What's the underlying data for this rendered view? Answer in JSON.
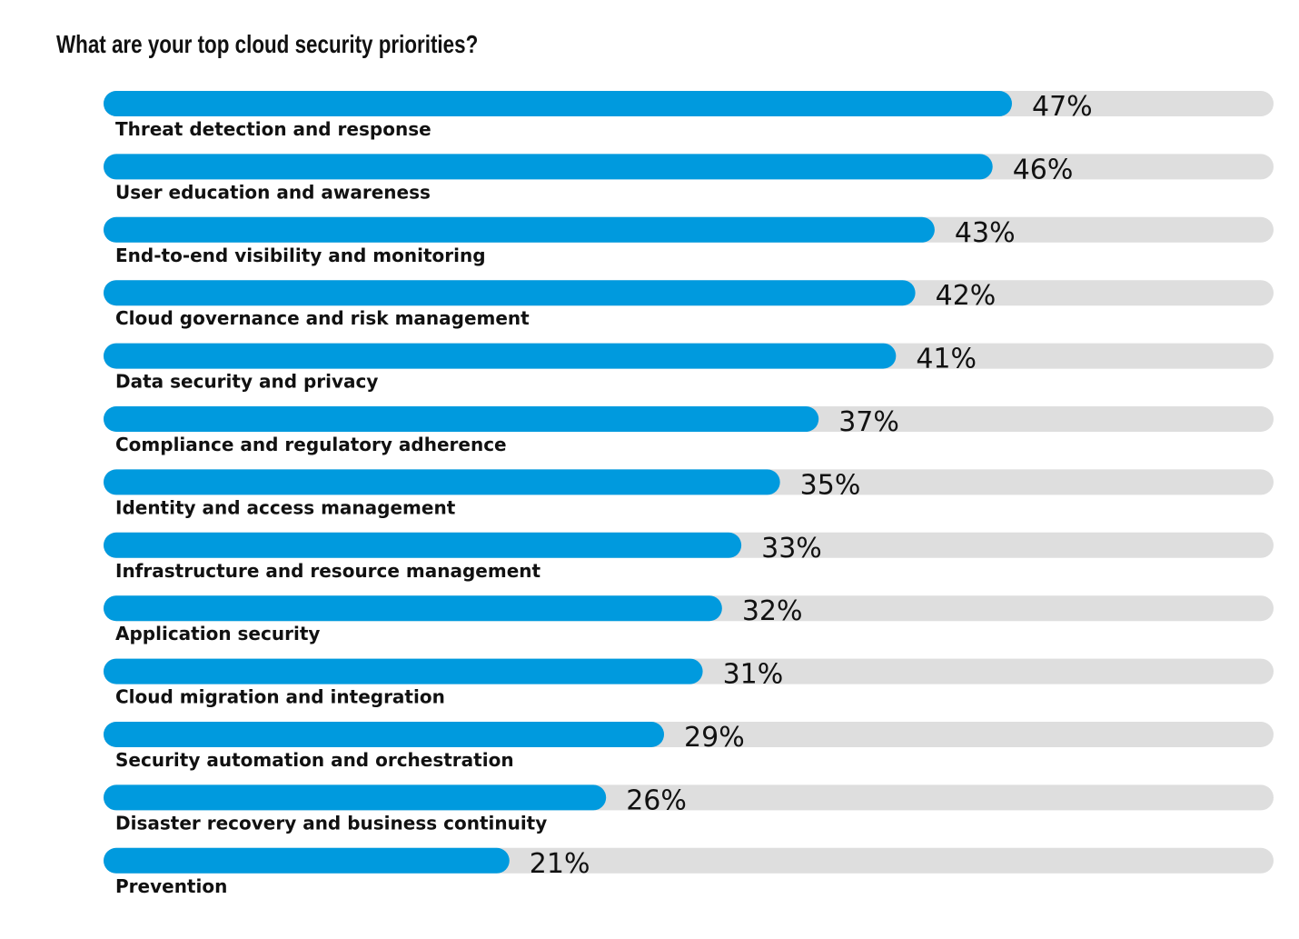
{
  "chart_data": {
    "type": "bar",
    "orientation": "horizontal",
    "title": "What are your top cloud security priorities?",
    "categories": [
      "Threat detection and response",
      "User education and awareness",
      "End-to-end visibility and monitoring",
      "Cloud governance and risk management",
      "Data security and privacy",
      "Compliance and regulatory adherence",
      "Identity and access management",
      "Infrastructure and resource management",
      "Application security",
      "Cloud migration and integration",
      "Security automation and orchestration",
      "Disaster recovery and business continuity",
      "Prevention"
    ],
    "values": [
      47,
      46,
      43,
      42,
      41,
      37,
      35,
      33,
      32,
      31,
      29,
      26,
      21
    ],
    "value_labels": [
      "47%",
      "46%",
      "43%",
      "42%",
      "41%",
      "37%",
      "35%",
      "33%",
      "32%",
      "31%",
      "29%",
      "26%",
      "21%"
    ],
    "value_unit": "%",
    "xlim": [
      0,
      60
    ],
    "grid": false,
    "legend": "none",
    "colors": {
      "bar": "#009ade",
      "track": "#dedede",
      "text": "#111111"
    }
  }
}
